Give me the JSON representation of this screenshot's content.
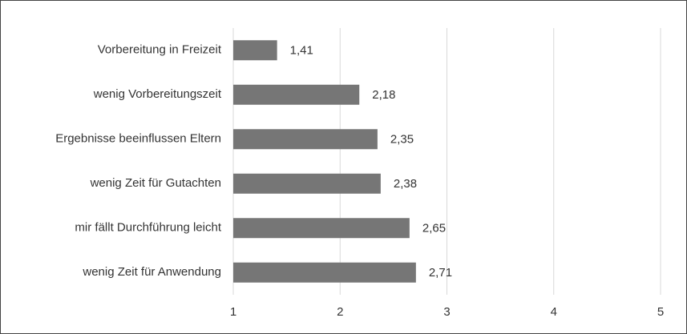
{
  "chart_data": {
    "type": "bar",
    "orientation": "horizontal",
    "categories": [
      "Vorbereitung in Freizeit",
      "wenig Vorbereitungszeit",
      "Ergebnisse beeinflussen Eltern",
      "wenig Zeit für Gutachten",
      "mir fällt Durchführung leicht",
      "wenig Zeit für Anwendung"
    ],
    "values": [
      1.41,
      2.18,
      2.35,
      2.38,
      2.65,
      2.71
    ],
    "value_labels": [
      "1,41",
      "2,18",
      "2,35",
      "2,38",
      "2,65",
      "2,71"
    ],
    "color": "#767676",
    "xlim": [
      1,
      5
    ],
    "xticks": [
      1,
      2,
      3,
      4,
      5
    ],
    "grid": true
  }
}
